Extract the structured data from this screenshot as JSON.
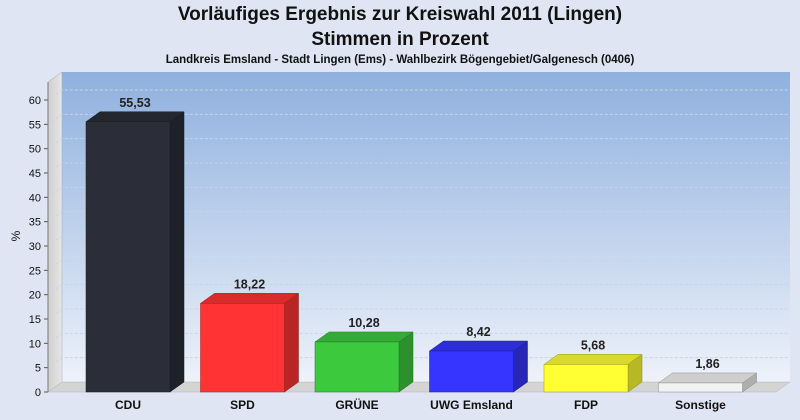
{
  "title": "Vorläufiges Ergebnis zur Kreiswahl 2011 (Lingen)",
  "subtitle": "Stimmen in Prozent",
  "caption": "Landkreis Emsland - Stadt Lingen (Ems) - Wahlbezirk Bögengebiet/Galgenesch (0406)",
  "chart_data": {
    "type": "bar",
    "title": "Vorläufiges Ergebnis zur Kreiswahl 2011 (Lingen)",
    "subtitle": "Stimmen in Prozent",
    "ylabel": "%",
    "xlabel": "",
    "ylim": [
      0,
      60
    ],
    "yticks": [
      0,
      5,
      10,
      15,
      20,
      25,
      30,
      35,
      40,
      45,
      50,
      55,
      60
    ],
    "grid": true,
    "categories": [
      "CDU",
      "SPD",
      "GRÜNE",
      "UWG Emsland",
      "FDP",
      "Sonstige"
    ],
    "values": [
      55.53,
      18.22,
      10.28,
      8.42,
      5.68,
      1.86
    ],
    "value_labels": [
      "55,53",
      "18,22",
      "10,28",
      "8,42",
      "5,68",
      "1,86"
    ],
    "colors": [
      "#2b2e38",
      "#ff3333",
      "#3dc93d",
      "#3535ff",
      "#ffff33",
      "#f2f2f2"
    ]
  }
}
